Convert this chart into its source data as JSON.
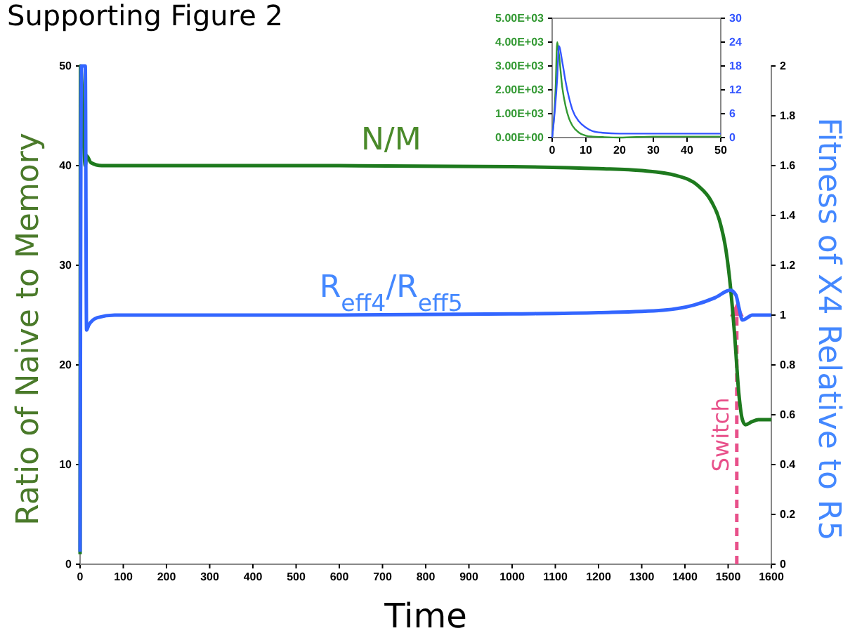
{
  "chart_data": [
    {
      "type": "line",
      "title": "Supporting Figure 2",
      "xlabel": "Time",
      "ylabel": "Ratio of Naive to Memory",
      "y2label": "Fitness of X4 Relative to R5",
      "xlim": [
        0,
        1600
      ],
      "xticks": [
        0,
        100,
        200,
        300,
        400,
        500,
        600,
        700,
        800,
        900,
        1000,
        1100,
        1200,
        1300,
        1400,
        1500,
        1600
      ],
      "ylim": [
        0,
        50
      ],
      "yticks": [
        0,
        10,
        20,
        30,
        40,
        50
      ],
      "y2lim": [
        0,
        2
      ],
      "y2ticks": [
        0,
        0.2,
        0.4,
        0.6,
        0.8,
        1,
        1.2,
        1.4,
        1.6,
        1.8,
        2
      ],
      "ref_lines": [
        {
          "axis": "x",
          "value": 1520,
          "label": "Switch",
          "color": "#e8508a",
          "line_style": "dashed"
        }
      ],
      "series": [
        {
          "name": "N/M",
          "color": "#1e7a1e",
          "x": [
            0,
            1,
            12,
            15,
            25,
            50,
            200,
            600,
            1000,
            1200,
            1300,
            1380,
            1430,
            1460,
            1480,
            1495,
            1505,
            1515,
            1525,
            1533,
            1540,
            1555,
            1570,
            1600
          ],
          "values": [
            1,
            50,
            40,
            41,
            40.3,
            40,
            40,
            40,
            39.9,
            39.7,
            39.5,
            39,
            38,
            36.5,
            34.5,
            31.5,
            28,
            23,
            17,
            14.5,
            14,
            14.3,
            14.5,
            14.5
          ]
        },
        {
          "name": "R$_{eff4}$/R$_{eff5}$",
          "color": "#3366ff",
          "axis": "y2",
          "x": [
            0,
            3,
            12,
            15,
            20,
            40,
            80,
            600,
            1000,
            1200,
            1350,
            1420,
            1470,
            1505,
            1518,
            1525,
            1533,
            1545,
            1555,
            1600
          ],
          "values": [
            0.05,
            2,
            2,
            0.94,
            0.96,
            0.99,
            1,
            1,
            1.005,
            1.01,
            1.02,
            1.04,
            1.07,
            1.1,
            1.08,
            1.03,
            0.98,
            0.99,
            1,
            1
          ]
        }
      ]
    },
    {
      "type": "line",
      "xlim": [
        0,
        50
      ],
      "xticks": [
        0,
        10,
        20,
        30,
        40,
        50
      ],
      "ylim": [
        0,
        5000
      ],
      "yticks": [
        {
          "value": 0,
          "label": "0.00E+00"
        },
        {
          "value": 1000,
          "label": "1.00E+03"
        },
        {
          "value": 2000,
          "label": "2.00E+03"
        },
        {
          "value": 3000,
          "label": "3.00E+03"
        },
        {
          "value": 4000,
          "label": "4.00E+03"
        },
        {
          "value": 5000,
          "label": "5.00E+03"
        }
      ],
      "y2lim": [
        0,
        30
      ],
      "y2ticks": [
        0,
        6,
        12,
        18,
        24,
        30
      ],
      "series": [
        {
          "color": "#339933",
          "x": [
            0,
            1,
            1.5,
            2,
            3,
            4,
            5,
            6,
            8,
            10,
            12,
            15,
            20,
            30,
            50
          ],
          "values": [
            0,
            2000,
            4000,
            3500,
            2100,
            1300,
            800,
            500,
            200,
            80,
            40,
            20,
            0,
            40,
            40
          ]
        },
        {
          "color": "#3355ff",
          "axis": "y2",
          "x": [
            0,
            1.5,
            2,
            3,
            4,
            5,
            6,
            8,
            10,
            12,
            15,
            20,
            50
          ],
          "values": [
            0,
            15,
            23,
            19,
            14,
            10,
            7,
            4,
            2.5,
            1.6,
            1.2,
            1,
            1
          ]
        }
      ]
    }
  ]
}
